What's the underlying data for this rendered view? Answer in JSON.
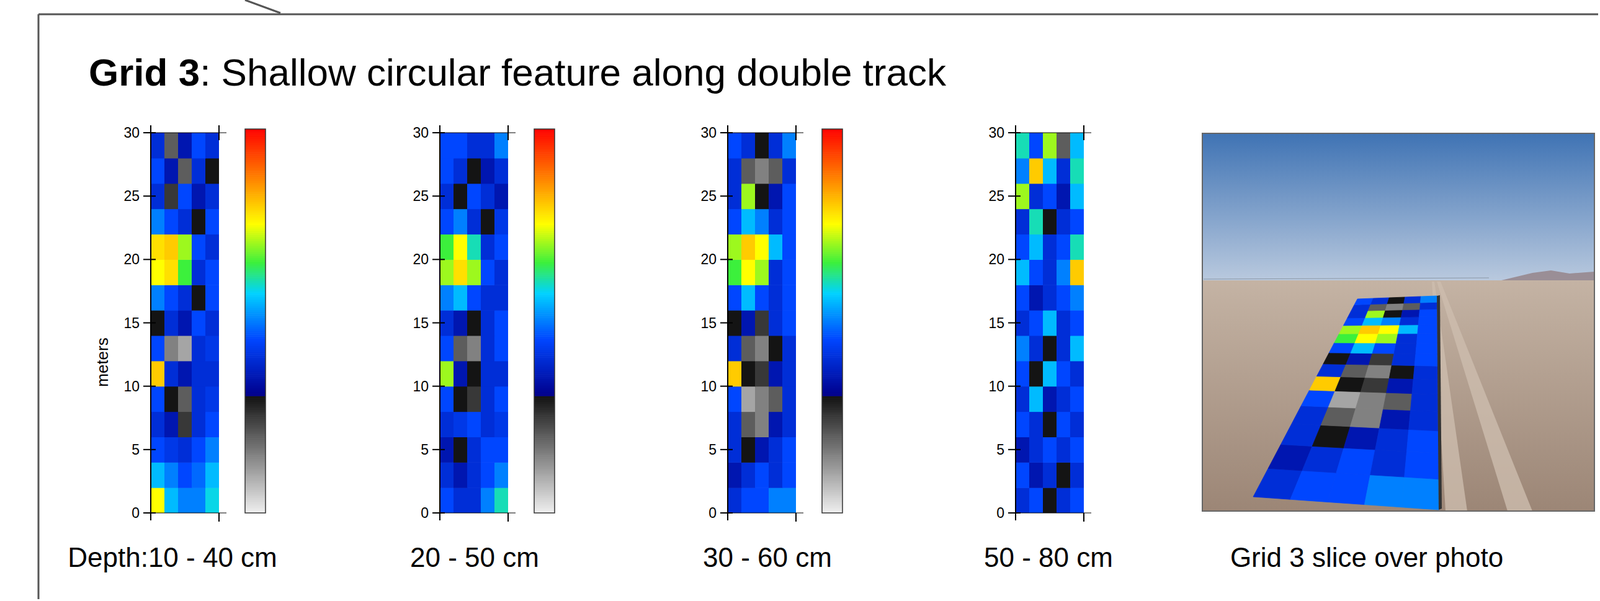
{
  "title": {
    "bold": "Grid 3",
    "text": ": Shallow circular feature along double track"
  },
  "chart_data": [
    {
      "type": "heatmap",
      "xlabel": "Depth:10 - 40 cm",
      "ylabel": "meters",
      "ylim": [
        0,
        30
      ],
      "yticks": [
        0,
        5,
        10,
        15,
        20,
        25,
        30
      ],
      "tick_labels": "y",
      "y_bins": [
        0,
        2,
        4,
        6,
        8,
        10,
        12,
        14,
        16,
        18,
        20,
        22,
        24,
        26,
        28,
        30
      ],
      "colorbar_range": [
        0,
        100
      ],
      "cells": [
        [
          75,
          55,
          50,
          50,
          58
        ],
        [
          55,
          50,
          45,
          48,
          55
        ],
        [
          45,
          42,
          40,
          45,
          50
        ],
        [
          40,
          35,
          25,
          40,
          45
        ],
        [
          45,
          30,
          20,
          40,
          42
        ],
        [
          80,
          40,
          35,
          40,
          40
        ],
        [
          45,
          15,
          10,
          40,
          42
        ],
        [
          30,
          40,
          35,
          45,
          40
        ],
        [
          50,
          45,
          40,
          30,
          45
        ],
        [
          75,
          78,
          65,
          40,
          45
        ],
        [
          78,
          80,
          70,
          45,
          40
        ],
        [
          50,
          45,
          40,
          30,
          45
        ],
        [
          40,
          25,
          45,
          35,
          40
        ],
        [
          45,
          35,
          20,
          40,
          30
        ],
        [
          40,
          20,
          35,
          45,
          40
        ]
      ]
    },
    {
      "type": "heatmap",
      "xlabel": "20 - 50 cm",
      "ylim": [
        0,
        30
      ],
      "yticks": [
        0,
        5,
        10,
        15,
        20,
        25,
        30
      ],
      "tick_labels": "y",
      "y_bins": [
        0,
        2,
        4,
        6,
        8,
        10,
        12,
        14,
        16,
        18,
        20,
        22,
        24,
        26,
        28,
        30
      ],
      "colorbar_range": [
        0,
        100
      ],
      "cells": [
        [
          45,
          40,
          40,
          50,
          60
        ],
        [
          40,
          35,
          40,
          45,
          50
        ],
        [
          35,
          30,
          40,
          45,
          45
        ],
        [
          40,
          42,
          45,
          40,
          42
        ],
        [
          45,
          30,
          25,
          40,
          45
        ],
        [
          70,
          35,
          30,
          40,
          40
        ],
        [
          45,
          20,
          15,
          40,
          45
        ],
        [
          40,
          35,
          30,
          40,
          45
        ],
        [
          50,
          55,
          45,
          40,
          40
        ],
        [
          70,
          78,
          70,
          45,
          40
        ],
        [
          65,
          75,
          60,
          40,
          45
        ],
        [
          45,
          50,
          40,
          30,
          42
        ],
        [
          40,
          30,
          45,
          40,
          35
        ],
        [
          45,
          40,
          30,
          35,
          40
        ],
        [
          45,
          45,
          40,
          40,
          50
        ]
      ]
    },
    {
      "type": "heatmap",
      "xlabel": "30 - 60 cm",
      "ylim": [
        0,
        30
      ],
      "yticks": [
        0,
        5,
        10,
        15,
        20,
        25,
        30
      ],
      "tick_labels": "y",
      "y_bins": [
        0,
        2,
        4,
        6,
        8,
        10,
        12,
        14,
        16,
        18,
        20,
        22,
        24,
        26,
        28,
        30
      ],
      "colorbar_range": [
        0,
        100
      ],
      "cells": [
        [
          40,
          45,
          45,
          50,
          50
        ],
        [
          35,
          40,
          45,
          40,
          45
        ],
        [
          40,
          30,
          35,
          40,
          45
        ],
        [
          40,
          20,
          15,
          35,
          40
        ],
        [
          45,
          10,
          15,
          20,
          40
        ],
        [
          80,
          30,
          25,
          35,
          40
        ],
        [
          40,
          20,
          15,
          30,
          40
        ],
        [
          30,
          35,
          25,
          40,
          45
        ],
        [
          45,
          55,
          45,
          40,
          45
        ],
        [
          65,
          75,
          70,
          40,
          45
        ],
        [
          70,
          80,
          75,
          55,
          45
        ],
        [
          45,
          55,
          50,
          40,
          45
        ],
        [
          40,
          70,
          30,
          35,
          45
        ],
        [
          40,
          20,
          15,
          20,
          40
        ],
        [
          45,
          40,
          30,
          40,
          50
        ]
      ]
    },
    {
      "type": "heatmap",
      "xlabel": "50 - 80 cm",
      "ylim": [
        0,
        30
      ],
      "yticks": [
        0,
        5,
        10,
        15,
        20,
        25,
        30
      ],
      "tick_labels": "y",
      "y_bins": [
        0,
        2,
        4,
        6,
        8,
        10,
        12,
        14,
        16,
        18,
        20,
        22,
        24,
        26,
        28,
        30
      ],
      "color_range": [
        0,
        100
      ],
      "cells": [
        [
          40,
          45,
          30,
          40,
          45
        ],
        [
          45,
          35,
          40,
          30,
          40
        ],
        [
          35,
          40,
          45,
          40,
          45
        ],
        [
          45,
          40,
          30,
          45,
          40
        ],
        [
          40,
          55,
          35,
          40,
          45
        ],
        [
          45,
          30,
          55,
          45,
          40
        ],
        [
          50,
          40,
          30,
          40,
          55
        ],
        [
          40,
          45,
          55,
          40,
          45
        ],
        [
          45,
          35,
          40,
          45,
          50
        ],
        [
          55,
          45,
          40,
          50,
          80
        ],
        [
          45,
          55,
          40,
          45,
          60
        ],
        [
          40,
          60,
          30,
          40,
          45
        ],
        [
          70,
          40,
          45,
          35,
          55
        ],
        [
          50,
          80,
          55,
          40,
          60
        ],
        [
          60,
          45,
          70,
          20,
          55
        ]
      ]
    }
  ],
  "photo": {
    "caption": "Grid 3 slice over photo"
  }
}
